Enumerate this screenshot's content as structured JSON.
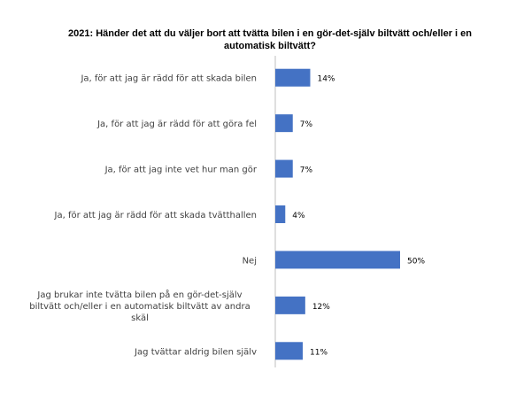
{
  "chart_data": {
    "type": "bar",
    "orientation": "horizontal",
    "title_lines": [
      "2021: Händer det att du väljer bort att tvätta bilen i en gör-det-själv biltvätt och/eller i en",
      "automatisk biltvätt?"
    ],
    "categories": [
      [
        "Ja, för att jag är rädd för att skada bilen"
      ],
      [
        "Ja, för att jag är rädd för att göra fel"
      ],
      [
        "Ja, för att jag inte vet hur man gör"
      ],
      [
        "Ja, för att jag är rädd för att skada tvätthallen"
      ],
      [
        "Nej"
      ],
      [
        "Jag brukar inte tvätta bilen på en gör-det-själv",
        "biltvätt och/eller i en automatisk biltvätt av andra",
        "skäl"
      ],
      [
        "Jag tvättar aldrig bilen själv"
      ]
    ],
    "values": [
      14,
      7,
      7,
      4,
      50,
      12,
      11
    ],
    "value_labels": [
      "14%",
      "7%",
      "7%",
      "4%",
      "50%",
      "12%",
      "11%"
    ],
    "xlim": [
      0,
      50
    ],
    "bar_color": "#4472C4",
    "axis_color": "#BFBFBF",
    "grid": false,
    "legend": "none"
  }
}
